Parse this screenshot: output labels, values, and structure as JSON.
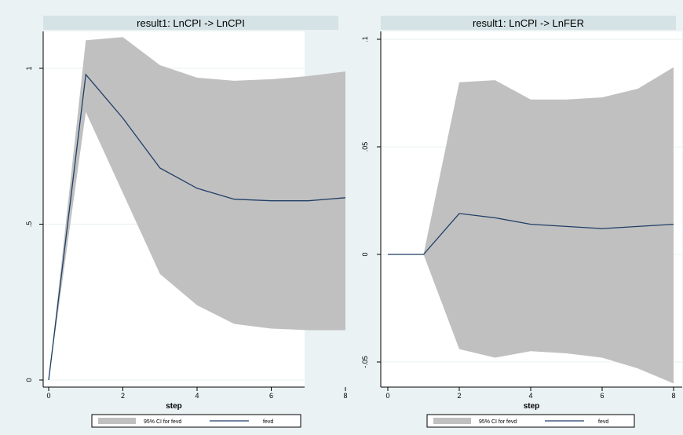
{
  "colors": {
    "figure_background": "#eaf2f3",
    "title_background": "#d5e3e6",
    "ci_band": "#c0c0c0",
    "fevd_line": "#1f3e66"
  },
  "chart_data": [
    {
      "type": "area",
      "title": "result1: LnCPI -> LnCPI",
      "xlabel": "step",
      "ylabel": "",
      "xlim": [
        0,
        8
      ],
      "ylim": [
        0,
        1
      ],
      "x_ticks": [
        0,
        2,
        4,
        6,
        8
      ],
      "x_tick_labels": [
        "0",
        "2",
        "4",
        "6",
        "8"
      ],
      "y_ticks": [
        0,
        0.5,
        1
      ],
      "y_tick_labels": [
        "0",
        ".5",
        "1"
      ],
      "grid": true,
      "legend_position": "bottom",
      "x": [
        0,
        1,
        2,
        3,
        4,
        5,
        6,
        7,
        8
      ],
      "series": [
        {
          "name": "95% CI for fevd",
          "kind": "band",
          "lower": [
            0,
            0.86,
            0.6,
            0.34,
            0.24,
            0.18,
            0.165,
            0.16,
            0.16
          ],
          "upper": [
            0,
            1.09,
            1.1,
            1.01,
            0.97,
            0.96,
            0.965,
            0.975,
            0.99
          ]
        },
        {
          "name": "fevd",
          "kind": "line",
          "values": [
            0,
            0.98,
            0.84,
            0.68,
            0.615,
            0.58,
            0.575,
            0.575,
            0.585
          ]
        }
      ]
    },
    {
      "type": "area",
      "title": "result1: LnCPI -> LnFER",
      "xlabel": "step",
      "ylabel": "",
      "xlim": [
        0,
        8
      ],
      "ylim": [
        -0.05,
        0.1
      ],
      "x_ticks": [
        0,
        2,
        4,
        6,
        8
      ],
      "x_tick_labels": [
        "0",
        "2",
        "4",
        "6",
        "8"
      ],
      "y_ticks": [
        -0.05,
        0,
        0.05,
        0.1
      ],
      "y_tick_labels": [
        "-.05",
        "0",
        ".05",
        ".1"
      ],
      "grid": true,
      "legend_position": "bottom",
      "x": [
        0,
        1,
        2,
        3,
        4,
        5,
        6,
        7,
        8
      ],
      "series": [
        {
          "name": "95% CI for fevd",
          "kind": "band",
          "lower": [
            0,
            0,
            -0.044,
            -0.048,
            -0.045,
            -0.046,
            -0.048,
            -0.053,
            -0.06
          ],
          "upper": [
            0,
            0,
            0.08,
            0.081,
            0.072,
            0.072,
            0.073,
            0.077,
            0.087
          ]
        },
        {
          "name": "fevd",
          "kind": "line",
          "values": [
            0,
            0,
            0.019,
            0.017,
            0.014,
            0.013,
            0.012,
            0.013,
            0.014
          ]
        }
      ]
    }
  ]
}
